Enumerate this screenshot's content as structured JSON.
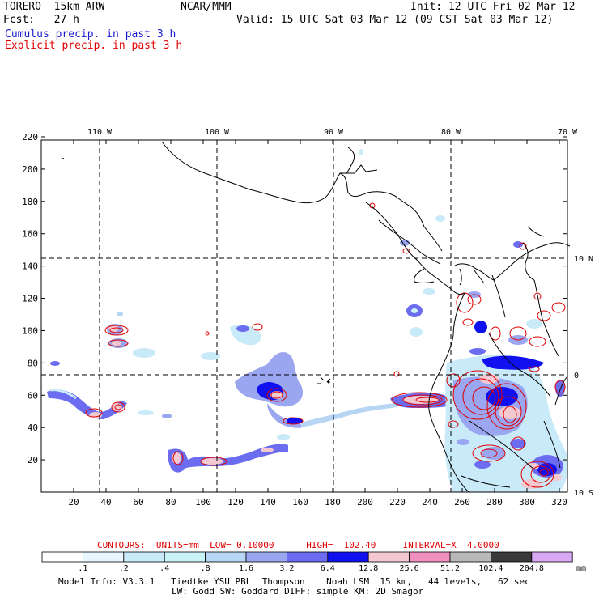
{
  "header": {
    "model": "TORERO  15km ARW",
    "center": "NCAR/MMM",
    "init": "Init: 12 UTC Fri 02 Mar 12",
    "fcst": "Fcst:   27 h",
    "valid": "Valid: 15 UTC Sat 03 Mar 12 (09 CST Sat 03 Mar 12)",
    "legend_cumulus": "Cumulus precip. in past 3 h",
    "legend_explicit": "Explicit precip. in past 3 h"
  },
  "colors": {
    "cumulus": "#1a1ad0",
    "explicit": "#e00000",
    "scale": [
      "#ffffff",
      "#e8f6ff",
      "#c9eaf8",
      "#c9f2f6",
      "#b6d6f4",
      "#9aa6f0",
      "#6b6cf0",
      "#1010f0",
      "#f4c8d0",
      "#f090c0",
      "#b8b8b8",
      "#3a3a3a",
      "#d8a8f4"
    ]
  },
  "map": {
    "top_lon_labels": [
      "110 W",
      "100 W",
      "90 W",
      "80 W",
      "70 W"
    ],
    "right_lat_labels": [
      "10 N",
      "0",
      "10 S"
    ],
    "y_ticks": [
      "220",
      "200",
      "180",
      "160",
      "140",
      "120",
      "100",
      "80",
      "60",
      "40",
      "20"
    ],
    "x_ticks": [
      "20",
      "40",
      "60",
      "80",
      "100",
      "120",
      "140",
      "160",
      "180",
      "200",
      "220",
      "240",
      "260",
      "280",
      "300",
      "320"
    ]
  },
  "contour_info": "CONTOURS:  UNITS=mm  LOW= 0.10000      HIGH=  102.40     INTERVAL=X  4.0000",
  "scale": {
    "labels": [
      ".1",
      ".2",
      ".4",
      ".8",
      "1.6",
      "3.2",
      "6.4",
      "12.8",
      "25.6",
      "51.2",
      "102.4",
      "204.8"
    ],
    "units": "mm"
  },
  "footer": {
    "line1": "Model Info: V3.3.1   Tiedtke YSU PBL  Thompson    Noah LSM  15 km,   44 levels,   62 sec",
    "line2": "LW: Godd SW: Goddard DIFF: simple KM: 2D Smagor"
  }
}
